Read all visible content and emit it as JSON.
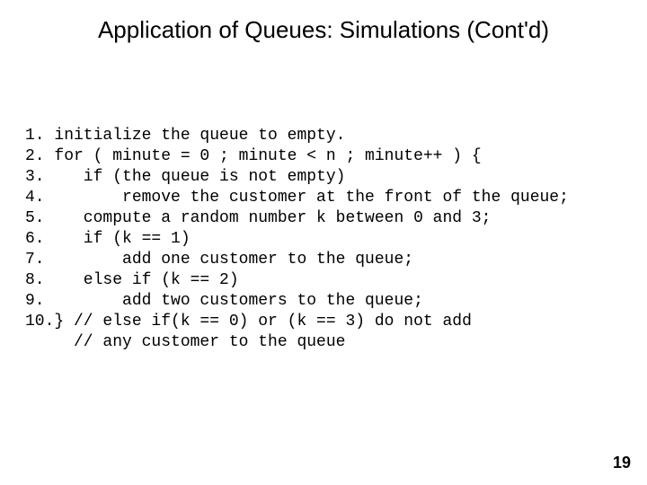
{
  "slide": {
    "title": "Application of Queues: Simulations (Cont'd)",
    "title_color": "#000000",
    "title_fontsize": 26,
    "code": {
      "font_family": "Courier New",
      "fontsize": 18,
      "color": "#000000",
      "lines": [
        "1. initialize the queue to empty.",
        "2. for ( minute = 0 ; minute < n ; minute++ ) {",
        "3.    if (the queue is not empty)",
        "4.        remove the customer at the front of the queue;",
        "5.    compute a random number k between 0 and 3;",
        "6.    if (k == 1)",
        "7.        add one customer to the queue;",
        "8.    else if (k == 2)",
        "9.        add two customers to the queue;",
        "10.} // else if(k == 0) or (k == 3) do not add",
        "     // any customer to the queue"
      ]
    },
    "page_number": "19",
    "background_color": "#ffffff"
  }
}
